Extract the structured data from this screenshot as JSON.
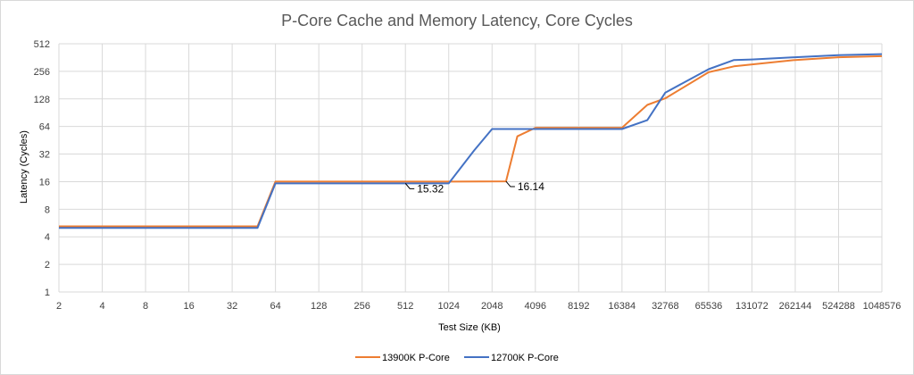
{
  "chart_data": {
    "type": "line",
    "title": "P-Core Cache and Memory Latency, Core Cycles",
    "xlabel": "Test Size (KB)",
    "ylabel": "Latency (Cycles)",
    "x_scale": "log2",
    "y_scale": "log2",
    "xlim": [
      2,
      1048576
    ],
    "ylim": [
      1,
      512
    ],
    "x_ticks": [
      "2",
      "4",
      "8",
      "16",
      "32",
      "64",
      "128",
      "256",
      "512",
      "1024",
      "2048",
      "4096",
      "8192",
      "16384",
      "32768",
      "65536",
      "131072",
      "262144",
      "524288",
      "1048576"
    ],
    "y_ticks": [
      "1",
      "2",
      "4",
      "8",
      "16",
      "32",
      "64",
      "128",
      "256",
      "512"
    ],
    "grid": true,
    "legend_position": "bottom",
    "series": [
      {
        "name": "13900K P-Core",
        "color": "#ED7D31",
        "x": [
          2,
          48,
          64,
          1024,
          2560,
          3072,
          4096,
          16384,
          24576,
          32768,
          65536,
          98304,
          262144,
          524288,
          1048576
        ],
        "y": [
          5.2,
          5.2,
          16,
          16,
          16.14,
          50,
          62,
          62,
          110,
          130,
          250,
          290,
          340,
          365,
          375
        ]
      },
      {
        "name": "12700K P-Core",
        "color": "#4472C4",
        "x": [
          2,
          48,
          64,
          1024,
          1536,
          2048,
          4096,
          16384,
          24576,
          32768,
          65536,
          98304,
          131072,
          262144,
          524288,
          1048576
        ],
        "y": [
          5.0,
          5.0,
          15.32,
          15.32,
          35,
          60,
          60,
          60,
          75,
          150,
          270,
          340,
          345,
          365,
          385,
          395
        ]
      }
    ],
    "annotations": [
      {
        "label": "15.32",
        "x": 512,
        "y": 15.32
      },
      {
        "label": "16.14",
        "x": 2560,
        "y": 16.14
      }
    ]
  }
}
